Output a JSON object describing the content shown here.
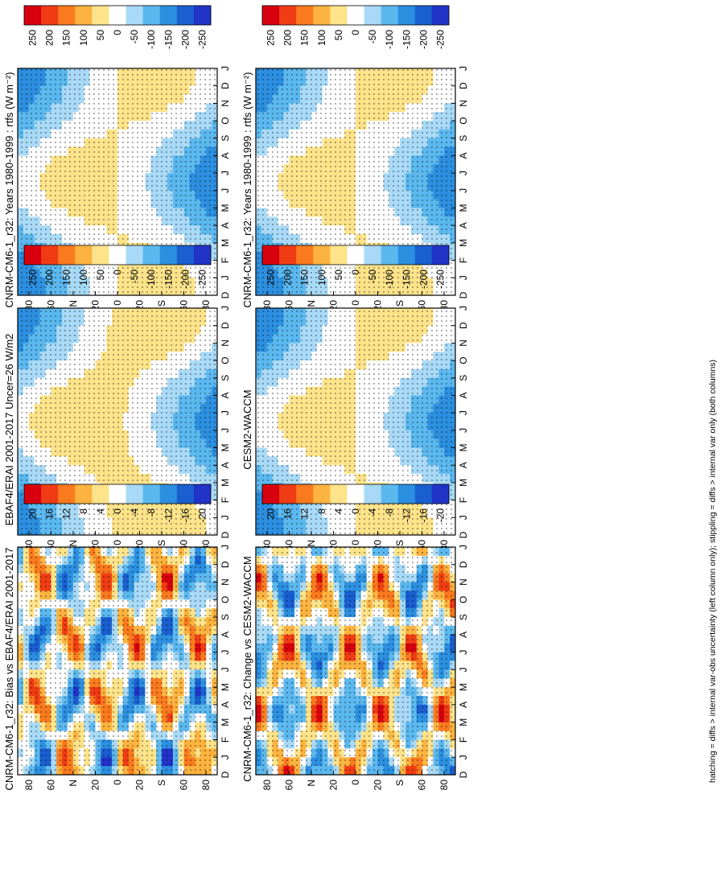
{
  "footnote": "hatching = diffs > internal var-obs uncertainty (left column only); stippling = diffs > internal var only (both columns)",
  "chart_data": [
    {
      "type": "heatmap",
      "panel_id": "model-left",
      "title": "CNRM-CM6-1_r32: Years 1980-1999 : rtfs (W m⁻²)",
      "x_months": [
        "D",
        "J",
        "F",
        "M",
        "A",
        "M",
        "J",
        "J",
        "A",
        "S",
        "O",
        "N",
        "D",
        "J"
      ],
      "lat_labels": [
        "80",
        "60",
        "N",
        "20",
        "0",
        "20",
        "S",
        "60",
        "80"
      ],
      "colorbar": {
        "labels": [
          "250",
          "200",
          "150",
          "100",
          "50",
          "0",
          "-50",
          "-100",
          "-150",
          "-200",
          "-250"
        ],
        "range": [
          -275,
          275
        ],
        "palette": "warm-high"
      },
      "field": "climatology"
    },
    {
      "type": "heatmap",
      "panel_id": "obs",
      "title": "EBAF4/ERAI 2001-2017 Uncer=26 W/m2",
      "x_months": [
        "D",
        "J",
        "F",
        "M",
        "A",
        "M",
        "J",
        "J",
        "A",
        "S",
        "O",
        "N",
        "D",
        "J"
      ],
      "lat_labels": [
        "80",
        "60",
        "N",
        "20",
        "0",
        "20",
        "S",
        "60",
        "80"
      ],
      "colorbar": {
        "labels": [
          "250",
          "200",
          "150",
          "100",
          "50",
          "0",
          "-50",
          "-100",
          "-150",
          "-200",
          "-250"
        ],
        "range": [
          -275,
          275
        ],
        "palette": "warm-high"
      },
      "field": "climatology"
    },
    {
      "type": "heatmap",
      "panel_id": "bias",
      "title": "CNRM-CM6-1_r32: Bias vs EBAF4/ERAI 2001-2017",
      "x_months": [
        "D",
        "J",
        "F",
        "M",
        "A",
        "M",
        "J",
        "J",
        "A",
        "S",
        "O",
        "N",
        "D",
        "J"
      ],
      "lat_labels": [
        "80",
        "60",
        "N",
        "20",
        "0",
        "20",
        "S",
        "60",
        "80"
      ],
      "colorbar": {
        "labels": [
          "20",
          "16",
          "12",
          "8",
          "4",
          "0",
          "-4",
          "-8",
          "-12",
          "-16",
          "-20"
        ],
        "range": [
          -22,
          22
        ],
        "palette": "warm-high"
      },
      "field": "difference"
    },
    {
      "type": "heatmap",
      "panel_id": "model-right",
      "title": "CNRM-CM6-1_r32: Years 1980-1999 : rtfs (W m⁻²)",
      "x_months": [
        "D",
        "J",
        "F",
        "M",
        "A",
        "M",
        "J",
        "J",
        "A",
        "S",
        "O",
        "N",
        "D",
        "J"
      ],
      "lat_labels": [
        "80",
        "60",
        "N",
        "20",
        "0",
        "20",
        "S",
        "60",
        "80"
      ],
      "colorbar": {
        "labels": [
          "250",
          "200",
          "150",
          "100",
          "50",
          "0",
          "-50",
          "-100",
          "-150",
          "-200",
          "-250"
        ],
        "range": [
          -275,
          275
        ],
        "palette": "warm-high"
      },
      "field": "climatology"
    },
    {
      "type": "heatmap",
      "panel_id": "ref",
      "title": "CESM2-WACCM",
      "x_months": [
        "D",
        "J",
        "F",
        "M",
        "A",
        "M",
        "J",
        "J",
        "A",
        "S",
        "O",
        "N",
        "D",
        "J"
      ],
      "lat_labels": [
        "80",
        "60",
        "N",
        "20",
        "0",
        "20",
        "S",
        "60",
        "80"
      ],
      "colorbar": {
        "labels": [
          "250",
          "200",
          "150",
          "100",
          "50",
          "0",
          "-50",
          "-100",
          "-150",
          "-200",
          "-250"
        ],
        "range": [
          -275,
          275
        ],
        "palette": "warm-high"
      },
      "field": "climatology"
    },
    {
      "type": "heatmap",
      "panel_id": "change",
      "title": "CNRM-CM6-1_r32: Change vs CESM2-WACCM",
      "x_months": [
        "D",
        "J",
        "F",
        "M",
        "A",
        "M",
        "J",
        "J",
        "A",
        "S",
        "O",
        "N",
        "D",
        "J"
      ],
      "lat_labels": [
        "80",
        "60",
        "N",
        "20",
        "0",
        "20",
        "S",
        "60",
        "80"
      ],
      "colorbar": {
        "labels": [
          "20",
          "16",
          "12",
          "8",
          "4",
          "0",
          "-4",
          "-8",
          "-12",
          "-16",
          "-20"
        ],
        "range": [
          -22,
          22
        ],
        "palette": "warm-high"
      },
      "field": "difference"
    }
  ]
}
